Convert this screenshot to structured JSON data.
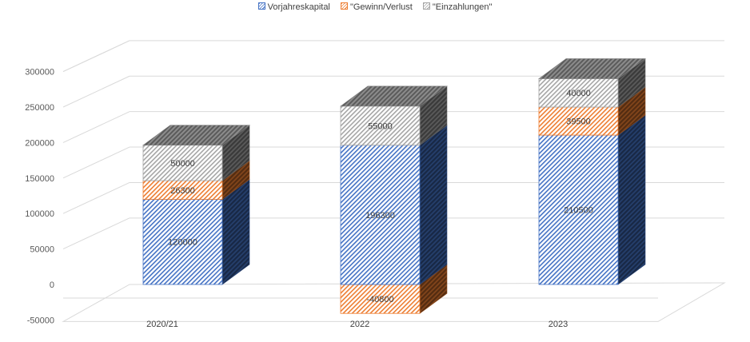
{
  "chart_data": {
    "type": "bar",
    "stacked": true,
    "three_d": true,
    "categories": [
      "2020/21",
      "2022",
      "2023"
    ],
    "series": [
      {
        "name": "Vorjahreskapital",
        "values": [
          120000,
          196300,
          210500
        ],
        "color": "#4472C4",
        "hatch": "diagonal"
      },
      {
        "name": "\"Gewinn/Verlust",
        "values": [
          26300,
          -40800,
          39500
        ],
        "color": "#ED7D31",
        "hatch": "diagonal"
      },
      {
        "name": "\"Einzahlungen\"",
        "values": [
          50000,
          55000,
          40000
        ],
        "color": "#A5A5A5",
        "hatch": "diagonal"
      }
    ],
    "yticks": [
      -50000,
      0,
      50000,
      100000,
      150000,
      200000,
      250000,
      300000
    ],
    "ylim": [
      -50000,
      300000
    ],
    "grid": true,
    "legend_position": "top",
    "data_labels": true
  }
}
